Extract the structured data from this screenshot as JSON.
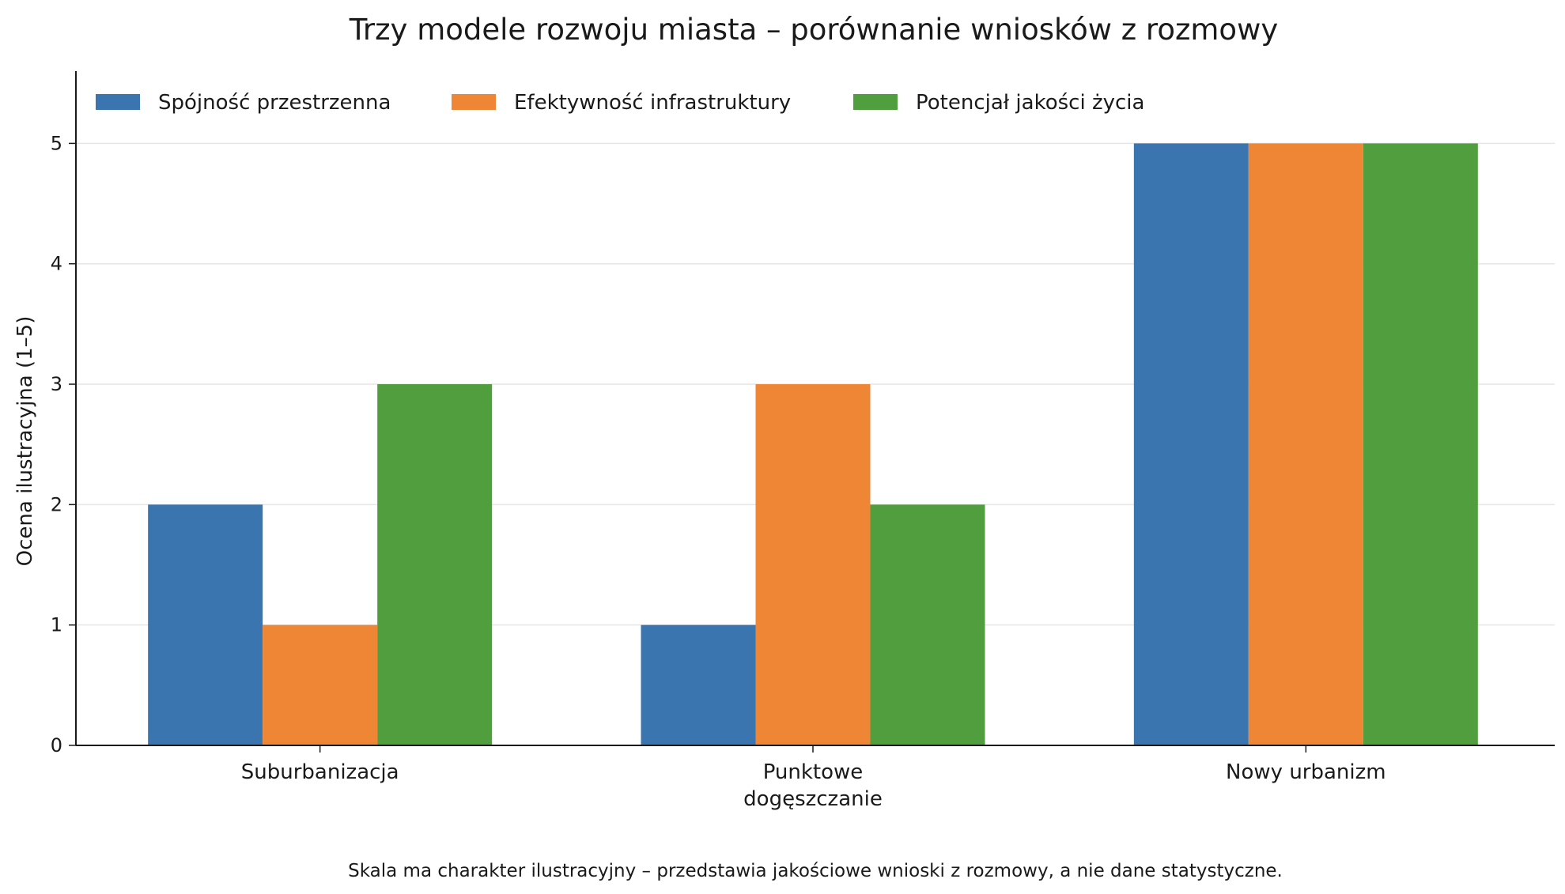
{
  "chart_data": {
    "type": "bar",
    "title": "Trzy modele rozwoju miasta – porównanie wniosków z rozmowy",
    "xlabel": "",
    "ylabel": "Ocena ilustracyjna (1–5)",
    "categories": [
      [
        "Suburbanizacja"
      ],
      [
        "Punktowe",
        "dogęszczanie"
      ],
      [
        "Nowy urbanizm"
      ]
    ],
    "series": [
      {
        "name": "Spójność przestrzenna",
        "color": "#3b75af",
        "values": [
          2,
          1,
          5
        ]
      },
      {
        "name": "Efektywność infrastruktury",
        "color": "#ef8636",
        "values": [
          1,
          3,
          5
        ]
      },
      {
        "name": "Potencjał jakości życia",
        "color": "#519e3e",
        "values": [
          3,
          2,
          5
        ]
      }
    ],
    "ylim": [
      0,
      5.6
    ],
    "yticks": [
      0,
      1,
      2,
      3,
      4,
      5
    ],
    "grid": "horizontal",
    "legend_position": "top-left",
    "footnote": "Skala ma charakter ilustracyjny – przedstawia jakościowe wnioski z rozmowy, a nie dane statystyczne."
  }
}
